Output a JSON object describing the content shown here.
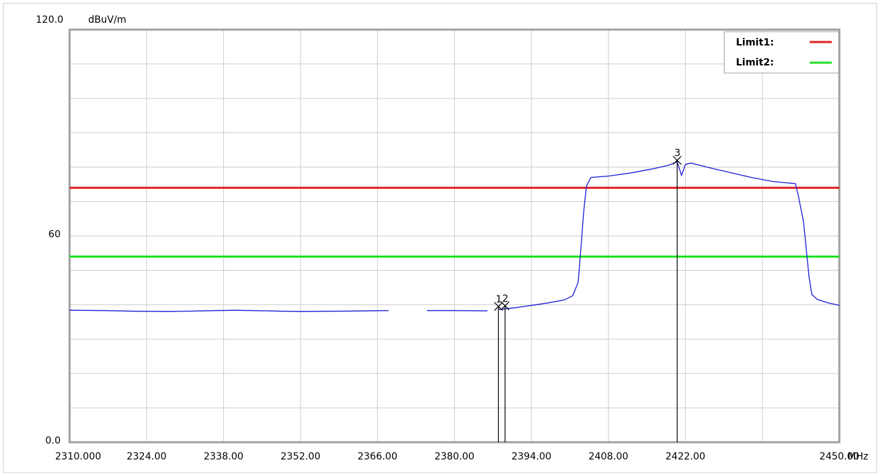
{
  "chart_data": {
    "type": "line",
    "y_top_label": "120.0",
    "y_unit": "dBuV/m",
    "x_unit": "MHz",
    "xlim": [
      2310,
      2450
    ],
    "ylim": [
      0,
      120
    ],
    "grid": true,
    "legend_placement": "top-right",
    "y_ticks": [
      {
        "value": 60,
        "label": "60"
      },
      {
        "value": 0,
        "label": "0.0"
      }
    ],
    "x_ticks": [
      {
        "value": 2310,
        "label": "2310.000"
      },
      {
        "value": 2324,
        "label": "2324.00"
      },
      {
        "value": 2338,
        "label": "2338.00"
      },
      {
        "value": 2352,
        "label": "2352.00"
      },
      {
        "value": 2366,
        "label": "2366.00"
      },
      {
        "value": 2380,
        "label": "2380.00"
      },
      {
        "value": 2394,
        "label": "2394.00"
      },
      {
        "value": 2408,
        "label": "2408.00"
      },
      {
        "value": 2422,
        "label": "2422.00"
      },
      {
        "value": 2450,
        "label": "2450.00"
      }
    ],
    "limits": [
      {
        "name": "Limit1:",
        "value": 74,
        "color": "#e02020"
      },
      {
        "name": "Limit2:",
        "value": 54,
        "color": "#20e020"
      }
    ],
    "markers": [
      {
        "label": "1",
        "x": 2388.0,
        "y": 39.5
      },
      {
        "label": "2",
        "x": 2389.2,
        "y": 39.7
      },
      {
        "label": "3",
        "x": 2420.5,
        "y": 82.0
      }
    ],
    "series": [
      {
        "color": "#1a1ad8",
        "segments": [
          [
            [
              2310,
              38.4
            ],
            [
              2316,
              38.3
            ],
            [
              2322,
              38.1
            ],
            [
              2328,
              38.0
            ],
            [
              2334,
              38.2
            ],
            [
              2340,
              38.4
            ],
            [
              2346,
              38.2
            ],
            [
              2352,
              38.0
            ],
            [
              2358,
              38.1
            ],
            [
              2364,
              38.2
            ],
            [
              2368,
              38.3
            ]
          ],
          [
            [
              2375,
              38.3
            ],
            [
              2380,
              38.3
            ],
            [
              2386,
              38.2
            ]
          ],
          [
            [
              2388,
              38.6
            ],
            [
              2391,
              39.1
            ],
            [
              2394,
              39.8
            ],
            [
              2397,
              40.5
            ],
            [
              2400,
              41.4
            ],
            [
              2401.5,
              42.6
            ],
            [
              2402.5,
              46.5
            ],
            [
              2403.0,
              56.5
            ],
            [
              2403.5,
              67.0
            ],
            [
              2404.0,
              74.5
            ],
            [
              2404.8,
              77.0
            ],
            [
              2408,
              77.4
            ],
            [
              2412,
              78.3
            ],
            [
              2416,
              79.5
            ],
            [
              2419,
              80.6
            ],
            [
              2420.5,
              81.6
            ],
            [
              2421.3,
              77.6
            ],
            [
              2422.0,
              80.8
            ],
            [
              2423,
              81.2
            ],
            [
              2426,
              80.0
            ],
            [
              2430,
              78.5
            ],
            [
              2434,
              77.0
            ],
            [
              2438,
              75.8
            ],
            [
              2442,
              75.2
            ],
            [
              2442.5,
              72.0
            ],
            [
              2443.5,
              64.0
            ],
            [
              2444,
              56.0
            ],
            [
              2444.5,
              48.0
            ],
            [
              2445,
              43.0
            ],
            [
              2446,
              41.5
            ],
            [
              2448,
              40.5
            ],
            [
              2450,
              39.8
            ]
          ]
        ]
      }
    ]
  }
}
